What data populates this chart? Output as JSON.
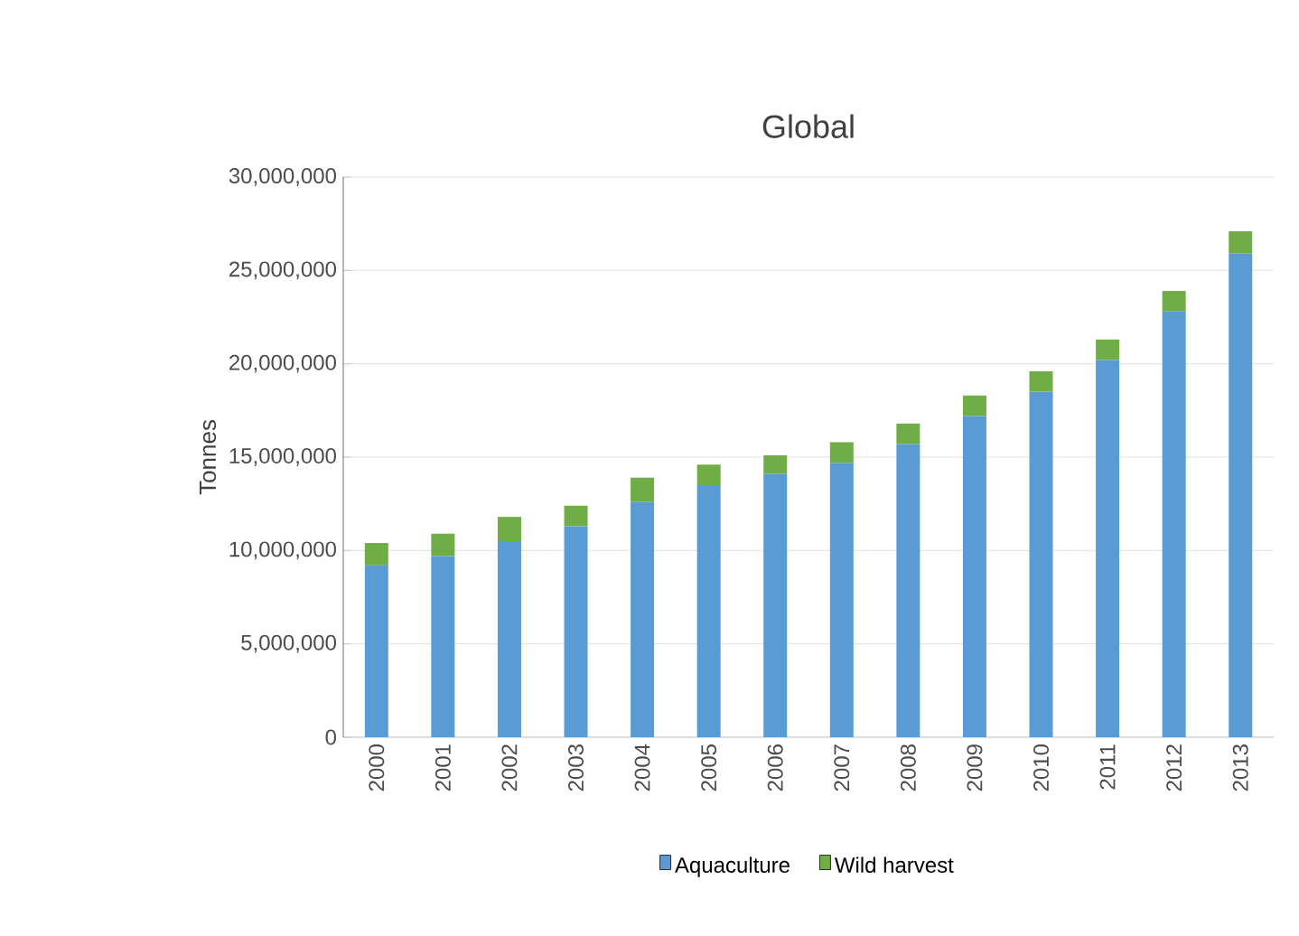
{
  "chart_data": {
    "type": "bar",
    "title": "Global",
    "ylabel": "Tonnes",
    "categories": [
      "2000",
      "2001",
      "2002",
      "2003",
      "2004",
      "2005",
      "2006",
      "2007",
      "2008",
      "2009",
      "2010",
      "2011",
      "2012",
      "2013"
    ],
    "stacked": true,
    "series": [
      {
        "name": "Aquaculture",
        "color": "#5b9bd5",
        "values": [
          9200000,
          9700000,
          10500000,
          11300000,
          12600000,
          13500000,
          14100000,
          14700000,
          15700000,
          17200000,
          18500000,
          20200000,
          22800000,
          25900000
        ]
      },
      {
        "name": "Wild harvest",
        "color": "#70ad47",
        "values": [
          1200000,
          1200000,
          1300000,
          1100000,
          1300000,
          1100000,
          1000000,
          1100000,
          1100000,
          1100000,
          1100000,
          1100000,
          1100000,
          1200000
        ]
      }
    ],
    "ylim": [
      0,
      30000000
    ],
    "yticks": [
      0,
      {
        "value": 5000000,
        "label": "5,000,000"
      },
      {
        "value": 10000000,
        "label": "10,000,000"
      },
      {
        "value": 15000000,
        "label": "15,000,000"
      },
      {
        "value": 20000000,
        "label": "20,000,000"
      },
      {
        "value": 25000000,
        "label": "25,000,000"
      },
      {
        "value": 30000000,
        "label": "30,000,000"
      }
    ],
    "grid": "y",
    "legend": "bottom"
  }
}
